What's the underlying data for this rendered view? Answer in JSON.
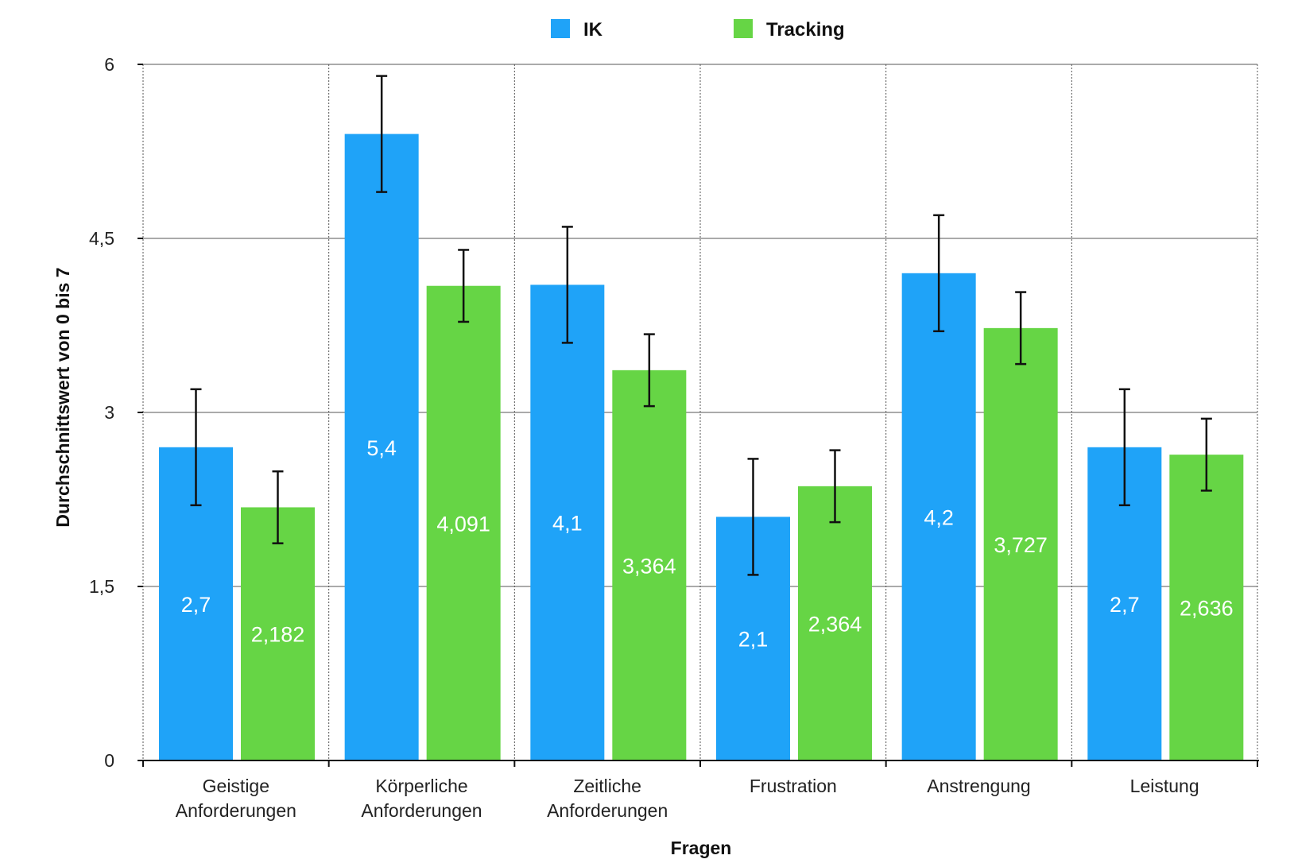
{
  "chart_data": {
    "type": "bar",
    "title": "",
    "xlabel": "Fragen",
    "ylabel": "Durchschnittswert von 0 bis 7",
    "ylim": [
      0,
      6
    ],
    "yticks": [
      0,
      1.5,
      3,
      4.5,
      6
    ],
    "ytick_labels": [
      "0",
      "1,5",
      "3",
      "4,5",
      "6"
    ],
    "grid": true,
    "legend": "top-center",
    "categories": [
      [
        "Geistige",
        "Anforderungen"
      ],
      [
        "Körperliche",
        "Anforderungen"
      ],
      [
        "Zeitliche",
        "Anforderungen"
      ],
      [
        "Frustration"
      ],
      [
        "Anstrengung"
      ],
      [
        "Leistung"
      ]
    ],
    "series": [
      {
        "name": "IK",
        "color": "#1fa3f8",
        "values": [
          2.7,
          5.4,
          4.1,
          2.1,
          4.2,
          2.7
        ],
        "labels": [
          "2,7",
          "5,4",
          "4,1",
          "2,1",
          "4,2",
          "2,7"
        ],
        "error": [
          0.5,
          0.5,
          0.5,
          0.5,
          0.5,
          0.5
        ]
      },
      {
        "name": "Tracking",
        "color": "#66d545",
        "values": [
          2.182,
          4.091,
          3.364,
          2.364,
          3.727,
          2.636
        ],
        "labels": [
          "2,182",
          "4,091",
          "3,364",
          "2,364",
          "3,727",
          "2,636"
        ],
        "error": [
          0.31,
          0.31,
          0.31,
          0.31,
          0.31,
          0.31
        ]
      }
    ]
  }
}
